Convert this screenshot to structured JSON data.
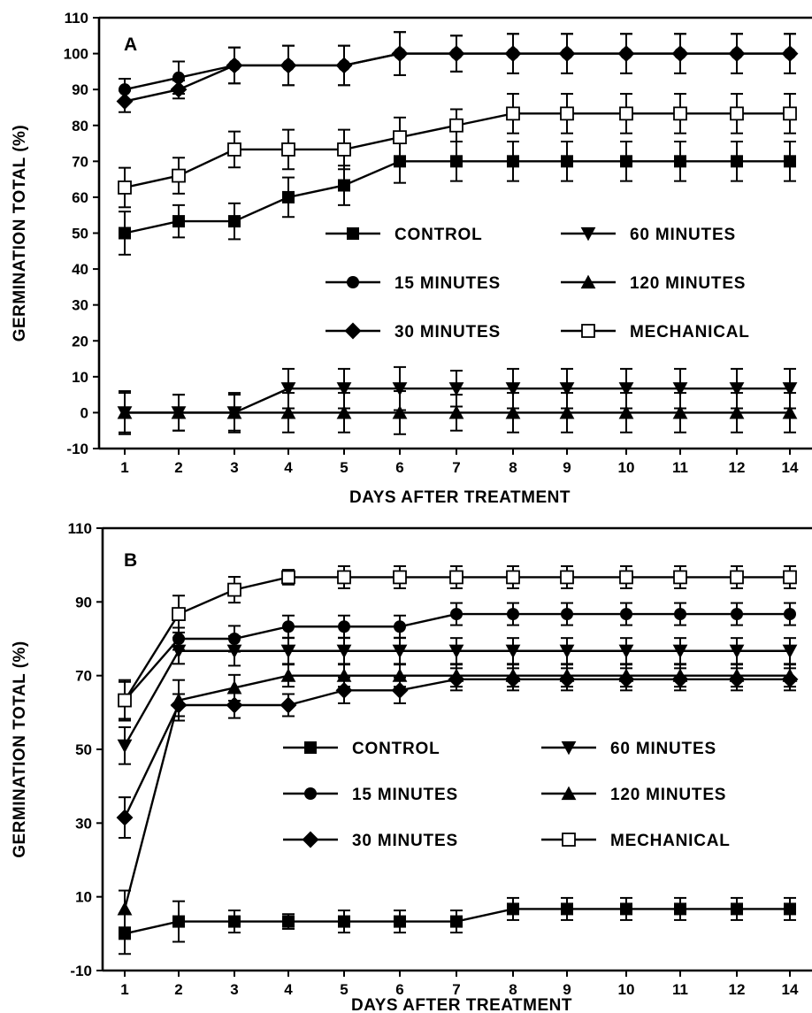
{
  "chart_data": [
    {
      "type": "line",
      "panel_label": "A",
      "xlabel": "DAYS AFTER TREATMENT",
      "ylabel": "GERMINATION TOTAL (%)",
      "x_ticks": [
        "1",
        "2",
        "3",
        "4",
        "5",
        "6",
        "7",
        "8",
        "9",
        "10",
        "11",
        "12",
        "14"
      ],
      "y_ticks": [
        "110",
        "100",
        "90",
        "80",
        "70",
        "60",
        "50",
        "40",
        "30",
        "20",
        "10",
        "0",
        "-10"
      ],
      "ylim": [
        -10,
        110
      ],
      "grid": false,
      "legend": [
        "CONTROL",
        "15 MINUTES",
        "30 MINUTES",
        "60 MINUTES",
        "120 MINUTES",
        "MECHANICAL"
      ],
      "legend_placement": "center-right",
      "series": [
        {
          "name": "CONTROL",
          "marker": "square",
          "values": [
            50,
            53.3,
            53.3,
            60,
            63.3,
            70,
            70,
            70,
            70,
            70,
            70,
            70,
            70
          ],
          "errors": [
            6,
            4.5,
            5,
            5.5,
            5.5,
            6,
            5.5,
            5.5,
            5.5,
            5.5,
            5.5,
            5.5,
            5.5
          ]
        },
        {
          "name": "15 MINUTES",
          "marker": "circle",
          "values": [
            90,
            93.3,
            96.7,
            96.7,
            96.7,
            100,
            100,
            100,
            100,
            100,
            100,
            100,
            100
          ],
          "errors": [
            3,
            4.5,
            5,
            5.5,
            5.5,
            6,
            5,
            5.5,
            5.5,
            5.5,
            5.5,
            5.5,
            5.5
          ]
        },
        {
          "name": "30 MINUTES",
          "marker": "diamond",
          "values": [
            86.7,
            90,
            96.7,
            96.7,
            96.7,
            100,
            100,
            100,
            100,
            100,
            100,
            100,
            100
          ],
          "errors": [
            3,
            2.5,
            5,
            5.5,
            5.5,
            6,
            5,
            5.5,
            5.5,
            5.5,
            5.5,
            5.5,
            5.5
          ]
        },
        {
          "name": "60 MINUTES",
          "marker": "triangle-down",
          "values": [
            0,
            0,
            0,
            6.7,
            6.7,
            6.7,
            6.7,
            6.7,
            6.7,
            6.7,
            6.7,
            6.7,
            6.7
          ],
          "errors": [
            6,
            5,
            5.5,
            5.5,
            5.5,
            6,
            5,
            5.5,
            5.5,
            5.5,
            5.5,
            5.5,
            5.5
          ]
        },
        {
          "name": "120 MINUTES",
          "marker": "triangle-up",
          "values": [
            0,
            0,
            0,
            0,
            0,
            0,
            0,
            0,
            0,
            0,
            0,
            0,
            0
          ],
          "errors": [
            5.5,
            5,
            5,
            5.5,
            5.5,
            6,
            5,
            5.5,
            5.5,
            5.5,
            5.5,
            5.5,
            5.5
          ]
        },
        {
          "name": "MECHANICAL",
          "marker": "open-square",
          "values": [
            62.7,
            66,
            73.3,
            73.3,
            73.3,
            76.7,
            80,
            83.3,
            83.3,
            83.3,
            83.3,
            83.3,
            83.3
          ],
          "errors": [
            5.5,
            5,
            5,
            5.5,
            5.5,
            5.5,
            4.5,
            5.5,
            5.5,
            5.5,
            5.5,
            5.5,
            5.5
          ]
        }
      ]
    },
    {
      "type": "line",
      "panel_label": "B",
      "xlabel": "DAYS AFTER TREATMENT",
      "ylabel": "GERMINATION TOTAL (%)",
      "x_ticks": [
        "1",
        "2",
        "3",
        "4",
        "5",
        "6",
        "7",
        "8",
        "9",
        "10",
        "11",
        "12",
        "14"
      ],
      "y_ticks": [
        "110",
        "90",
        "70",
        "50",
        "30",
        "10",
        "-10"
      ],
      "ylim": [
        -10,
        110
      ],
      "grid": false,
      "legend": [
        "CONTROL",
        "15 MINUTES",
        "30 MINUTES",
        "60 MINUTES",
        "120 MINUTES",
        "MECHANICAL"
      ],
      "legend_placement": "center-right",
      "series": [
        {
          "name": "CONTROL",
          "marker": "square",
          "values": [
            0,
            3.3,
            3.3,
            3.3,
            3.3,
            3.3,
            3.3,
            6.7,
            6.7,
            6.7,
            6.7,
            6.7,
            6.7
          ],
          "errors": [
            5.5,
            5.5,
            3,
            2,
            3,
            3,
            3,
            3,
            3,
            3,
            3,
            3,
            3
          ]
        },
        {
          "name": "15 MINUTES",
          "marker": "circle",
          "values": [
            63.3,
            80,
            80,
            83.3,
            83.3,
            83.3,
            86.7,
            86.7,
            86.7,
            86.7,
            86.7,
            86.7,
            86.7
          ],
          "errors": [
            5,
            3,
            3.5,
            3,
            3,
            3,
            3,
            3,
            3,
            3,
            3,
            3,
            3
          ]
        },
        {
          "name": "30 MINUTES",
          "marker": "diamond",
          "values": [
            31.5,
            62,
            62,
            62,
            66,
            66,
            69,
            69,
            69,
            69,
            69,
            69,
            69
          ],
          "errors": [
            5.5,
            3,
            3.5,
            3,
            3.5,
            3.5,
            3,
            3,
            3,
            3,
            3,
            3,
            3
          ]
        },
        {
          "name": "60 MINUTES",
          "marker": "triangle-down",
          "values": [
            51,
            76.7,
            76.7,
            76.7,
            76.7,
            76.7,
            76.7,
            76.7,
            76.7,
            76.7,
            76.7,
            76.7,
            76.7
          ],
          "errors": [
            5,
            3.5,
            4,
            3.5,
            3.5,
            3.5,
            3.5,
            3.5,
            3.5,
            3.5,
            3.5,
            3.5,
            3.5
          ]
        },
        {
          "name": "120 MINUTES",
          "marker": "triangle-up",
          "values": [
            6.7,
            63.3,
            66.7,
            70,
            70,
            70,
            70,
            70,
            70,
            70,
            70,
            70,
            70
          ],
          "errors": [
            5,
            5.5,
            3.5,
            3,
            3,
            3,
            3,
            3,
            3,
            3,
            3,
            3,
            3
          ]
        },
        {
          "name": "MECHANICAL",
          "marker": "open-square",
          "values": [
            63.3,
            86.7,
            93.3,
            96.7,
            96.7,
            96.7,
            96.7,
            96.7,
            96.7,
            96.7,
            96.7,
            96.7,
            96.7
          ],
          "errors": [
            5.5,
            5,
            3.5,
            2,
            3,
            3,
            3,
            3,
            3,
            3,
            3,
            3,
            3
          ]
        }
      ]
    }
  ]
}
